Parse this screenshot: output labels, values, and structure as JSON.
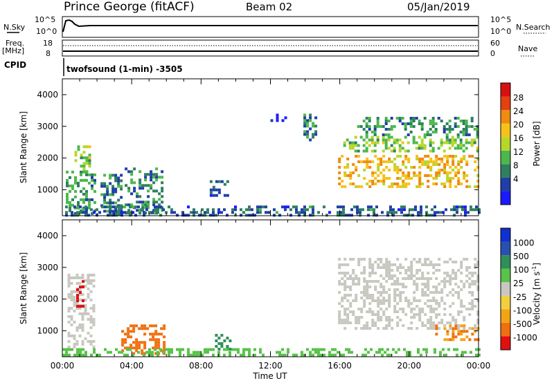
{
  "header": {
    "station": "Prince George (fitACF)",
    "beam": "Beam 02",
    "date": "05/Jan/2019"
  },
  "top_panels": {
    "nsky_label": "N.Sky",
    "nsky_ticks": [
      "10^5",
      "10^0"
    ],
    "nsearch_label": "N.Search",
    "nsearch_ticks": [
      "10^5",
      "10^0"
    ],
    "freq_label": "Freq.",
    "freq_unit": "[MHz]",
    "freq_ticks": [
      "18",
      "8"
    ],
    "nave_label": "Nave",
    "nave_ticks": [
      "60",
      "0"
    ],
    "cpid_label": "CPID",
    "cpid_text": "twofsound (1-min) -3505"
  },
  "colors": {
    "power": [
      "#1a1aff",
      "#1f3fa8",
      "#2f7f5f",
      "#4cb84c",
      "#b7d62a",
      "#f6c21a",
      "#f08a10",
      "#e44010",
      "#d81010"
    ],
    "velocity": [
      "#e11010",
      "#f07010",
      "#f3a415",
      "#f3cf40",
      "#c8c8c0",
      "#58c24a",
      "#2f8f5a",
      "#2850b0",
      "#1030d0"
    ]
  },
  "chart_data": [
    {
      "type": "heatmap",
      "title": "Power",
      "ylabel": "Slant Range [km]",
      "ylim": [
        180,
        4500
      ],
      "yticks": [
        "4000",
        "3000",
        "2000",
        "1000"
      ],
      "xlim": [
        "00:00",
        "24:00"
      ],
      "colorbar_label": "Power [dB]",
      "colorbar_ticks": [
        "28",
        "24",
        "20",
        "16",
        "12",
        "8",
        "4"
      ],
      "colorbar_range": [
        0,
        32
      ],
      "regions": [
        {
          "t0": 0.2,
          "t1": 1.8,
          "r0": 250,
          "r1": 1600,
          "value": 10
        },
        {
          "t0": 0.7,
          "t1": 1.6,
          "r0": 1500,
          "r1": 2400,
          "value": 14
        },
        {
          "t0": 2.2,
          "t1": 3.4,
          "r0": 250,
          "r1": 1500,
          "value": 8
        },
        {
          "t0": 3.6,
          "t1": 5.8,
          "r0": 300,
          "r1": 1700,
          "value": 9
        },
        {
          "t0": 8.5,
          "t1": 9.6,
          "r0": 800,
          "r1": 1300,
          "value": 6
        },
        {
          "t0": 12.0,
          "t1": 13.0,
          "r0": 3200,
          "r1": 3400,
          "value": 6
        },
        {
          "t0": 13.9,
          "t1": 14.6,
          "r0": 2500,
          "r1": 3400,
          "value": 8
        },
        {
          "t0": 15.9,
          "t1": 24.0,
          "r0": 1100,
          "r1": 2100,
          "value": 20
        },
        {
          "t0": 16.2,
          "t1": 24.0,
          "r0": 2200,
          "r1": 2700,
          "value": 14
        },
        {
          "t0": 17.0,
          "t1": 24.0,
          "r0": 2700,
          "r1": 3300,
          "value": 10
        },
        {
          "t0": 0.0,
          "t1": 24.0,
          "r0": 200,
          "r1": 500,
          "value": 7
        }
      ]
    },
    {
      "type": "heatmap",
      "title": "Velocity",
      "ylabel": "Slant Range [km]",
      "ylim": [
        180,
        4500
      ],
      "yticks": [
        "4000",
        "3000",
        "2000",
        "1000"
      ],
      "xlim": [
        "00:00",
        "24:00"
      ],
      "xlabel": "Time UT",
      "xticks": [
        "00:00",
        "04:00",
        "08:00",
        "12:00",
        "16:00",
        "20:00",
        "00:00"
      ],
      "colorbar_label": "Velocity [m s^-1]",
      "colorbar_ticks": [
        "1000",
        "500",
        "100",
        "25",
        "-25",
        "-100",
        "-500",
        "-1000"
      ],
      "regions": [
        {
          "t0": 0.3,
          "t1": 1.8,
          "r0": 500,
          "r1": 2800,
          "value": 0
        },
        {
          "t0": 0.8,
          "t1": 1.2,
          "r0": 1800,
          "r1": 2600,
          "value": -1000
        },
        {
          "t0": 3.4,
          "t1": 5.8,
          "r0": 300,
          "r1": 1200,
          "value": -150
        },
        {
          "t0": 8.8,
          "t1": 9.6,
          "r0": 400,
          "r1": 900,
          "value": 200
        },
        {
          "t0": 15.9,
          "t1": 24.0,
          "r0": 1100,
          "r1": 3300,
          "value": 0
        },
        {
          "t0": 21.5,
          "t1": 24.0,
          "r0": 700,
          "r1": 1200,
          "value": -100
        },
        {
          "t0": 0.0,
          "t1": 24.0,
          "r0": 200,
          "r1": 450,
          "value": 50
        }
      ]
    }
  ]
}
